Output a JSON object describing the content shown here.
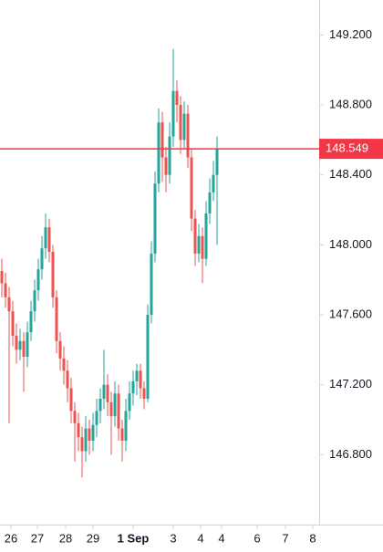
{
  "chart_data": {
    "type": "candlestick",
    "series": [
      {
        "up_color": "#26a69a",
        "down_color": "#ef5350",
        "open": [
          147.85,
          147.78,
          147.7,
          147.62,
          147.48,
          147.4,
          147.45,
          147.36,
          147.5,
          147.62,
          147.74,
          147.86,
          147.98,
          148.1,
          147.96,
          147.7,
          147.45,
          147.35,
          147.28,
          147.18,
          147.05,
          146.98,
          146.9,
          146.82,
          146.95,
          146.88,
          146.97,
          147.05,
          147.12,
          147.2,
          147.1,
          147.02,
          147.15,
          146.95,
          146.88,
          147.05,
          147.15,
          147.22,
          147.28,
          147.18,
          147.12,
          147.6,
          147.95,
          148.35,
          148.7,
          148.5,
          148.4,
          148.62,
          148.88,
          148.8,
          148.6,
          148.75,
          148.5,
          148.15,
          147.95,
          148.05,
          147.92,
          148.18,
          148.3,
          148.4
        ],
        "high": [
          147.92,
          147.84,
          147.76,
          147.68,
          147.55,
          147.52,
          147.5,
          147.56,
          147.68,
          147.8,
          147.92,
          148.05,
          148.18,
          148.15,
          148.0,
          147.74,
          147.5,
          147.42,
          147.34,
          147.24,
          147.1,
          147.04,
          146.96,
          147.02,
          147.0,
          147.04,
          147.12,
          147.18,
          147.4,
          147.26,
          147.16,
          147.22,
          147.2,
          147.0,
          147.12,
          147.22,
          147.28,
          147.32,
          147.32,
          147.22,
          147.66,
          148.02,
          148.42,
          148.78,
          148.76,
          148.56,
          148.7,
          149.12,
          148.94,
          148.85,
          148.82,
          148.8,
          148.55,
          148.2,
          148.12,
          148.1,
          148.25,
          148.38,
          148.48,
          148.62
        ],
        "low": [
          147.7,
          147.64,
          146.98,
          147.42,
          147.32,
          147.34,
          147.16,
          147.3,
          147.45,
          147.56,
          147.68,
          147.8,
          147.92,
          147.9,
          147.64,
          147.38,
          147.28,
          147.2,
          147.1,
          146.98,
          146.76,
          146.82,
          146.67,
          146.76,
          146.8,
          146.82,
          146.9,
          146.98,
          147.06,
          147.02,
          146.8,
          146.96,
          146.88,
          146.76,
          146.82,
          147.0,
          147.08,
          147.14,
          147.12,
          147.06,
          147.1,
          147.55,
          147.9,
          148.3,
          148.36,
          148.3,
          148.35,
          148.56,
          148.7,
          148.52,
          148.55,
          148.44,
          148.08,
          147.88,
          147.9,
          147.78,
          147.88,
          148.12,
          148.25,
          148.0
        ],
        "close": [
          147.78,
          147.7,
          147.62,
          147.48,
          147.4,
          147.45,
          147.36,
          147.5,
          147.62,
          147.74,
          147.86,
          147.98,
          148.1,
          147.96,
          147.7,
          147.45,
          147.35,
          147.28,
          147.18,
          147.05,
          146.98,
          146.9,
          146.82,
          146.95,
          146.88,
          146.97,
          147.05,
          147.12,
          147.2,
          147.1,
          147.02,
          147.15,
          146.95,
          146.88,
          147.05,
          147.15,
          147.22,
          147.28,
          147.18,
          147.12,
          147.6,
          147.95,
          148.35,
          148.7,
          148.5,
          148.4,
          148.62,
          148.88,
          148.8,
          148.6,
          148.75,
          148.5,
          148.15,
          147.95,
          148.05,
          147.92,
          148.18,
          148.3,
          148.4,
          148.55
        ]
      }
    ],
    "last_price": 148.549,
    "last_price_color": "#f23645",
    "ylim": [
      146.4,
      149.4
    ],
    "yticks": [
      {
        "value": 146.8,
        "label": "146.800"
      },
      {
        "value": 147.2,
        "label": "147.200"
      },
      {
        "value": 147.6,
        "label": "147.600"
      },
      {
        "value": 148.0,
        "label": "148.000"
      },
      {
        "value": 148.4,
        "label": "148.400"
      },
      {
        "value": 148.8,
        "label": "148.800"
      },
      {
        "value": 149.2,
        "label": "149.200"
      }
    ],
    "xlim": [
      -0.5,
      87
    ],
    "xticks": [
      {
        "value": 2.5,
        "label": "26"
      },
      {
        "value": 9.75,
        "label": "27"
      },
      {
        "value": 17.5,
        "label": "28"
      },
      {
        "value": 25,
        "label": "29"
      },
      {
        "value": 36,
        "label": "1 Sep"
      },
      {
        "value": 47,
        "label": "3"
      },
      {
        "value": 54.5,
        "label": "4"
      },
      {
        "value": 60.25,
        "label": "4"
      },
      {
        "value": 70,
        "label": "6"
      },
      {
        "value": 77.75,
        "label": "7"
      },
      {
        "value": 85.25,
        "label": "8"
      }
    ]
  }
}
